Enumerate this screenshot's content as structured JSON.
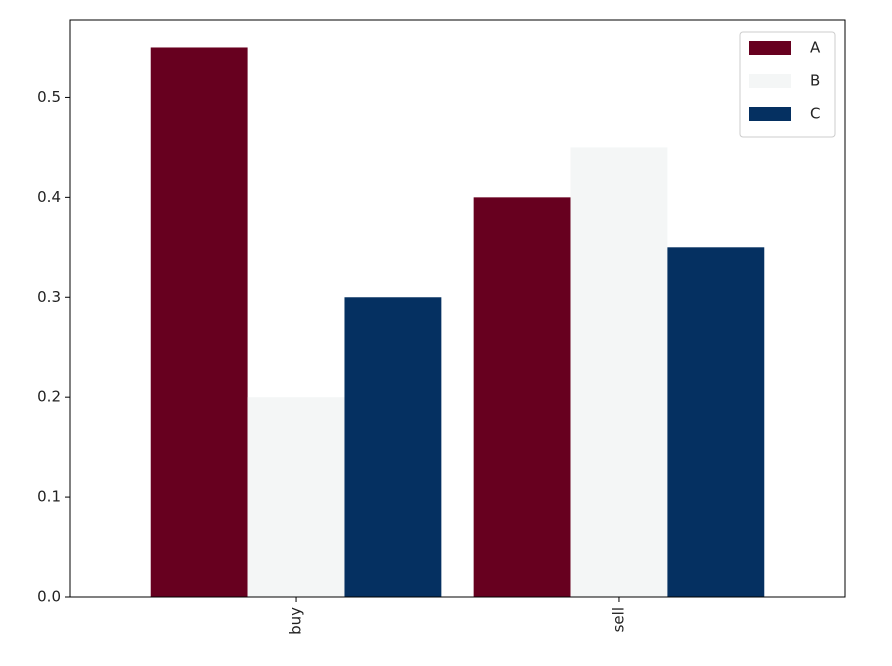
{
  "chart_data": {
    "type": "bar",
    "categories": [
      "buy",
      "sell"
    ],
    "series": [
      {
        "name": "A",
        "color": "#67001f",
        "values": [
          0.55,
          0.4
        ]
      },
      {
        "name": "B",
        "color": "#f4f6f6",
        "values": [
          0.2,
          0.45
        ]
      },
      {
        "name": "C",
        "color": "#053061",
        "values": [
          0.3,
          0.35
        ]
      }
    ],
    "ylim": [
      0,
      0.5775
    ],
    "yticks": [
      0.0,
      0.1,
      0.2,
      0.3,
      0.4,
      0.5
    ],
    "legend": "upper right",
    "grid": false
  }
}
